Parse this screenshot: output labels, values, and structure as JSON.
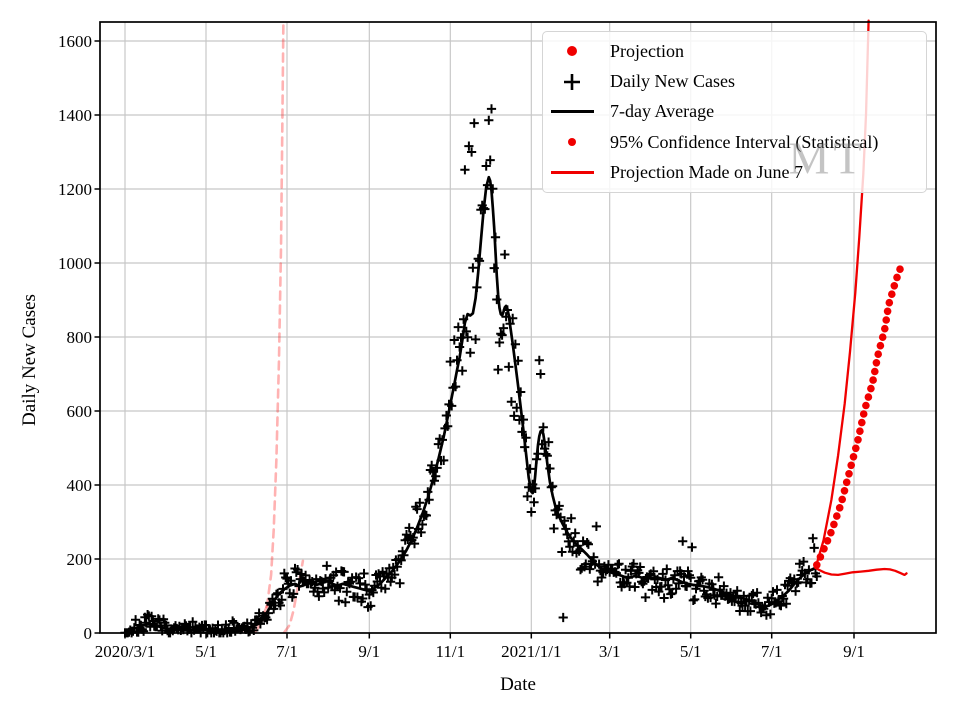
{
  "figure": {
    "watermark": "MT",
    "background": "#ffffff"
  },
  "chart_data": {
    "type": "line",
    "title": "",
    "xlabel": "Date",
    "ylabel": "Daily New Cases",
    "x_axis": {
      "unit": "days since 2020-03-01",
      "tick_days": [
        0,
        61,
        122,
        184,
        245,
        306,
        365,
        426,
        487,
        549
      ],
      "tick_labels": [
        "2020/3/1",
        "5/1",
        "7/1",
        "9/1",
        "11/1",
        "2021/1/1",
        "3/1",
        "5/1",
        "7/1",
        "9/1"
      ],
      "range_days": [
        -19,
        611
      ],
      "grid": true
    },
    "y_axis": {
      "ticks": [
        0,
        200,
        400,
        600,
        800,
        1000,
        1200,
        1400,
        1600
      ],
      "range": [
        0,
        1651
      ],
      "grid": true
    },
    "colors": {
      "red": "#f00000",
      "black": "#000000",
      "faded_pink": "rgba(255,0,0,0.30)",
      "grid": "#c6c6c6",
      "axis": "#000000"
    },
    "legend": {
      "position": "upper-right",
      "entries": [
        {
          "label": "Projection",
          "marker": "dot",
          "color": "#f00000",
          "dot_radius": 5
        },
        {
          "label": "Daily New Cases",
          "marker": "plus",
          "color": "#000000"
        },
        {
          "label": "7-day Average",
          "marker": "line",
          "color": "#000000"
        },
        {
          "label": "95% Confidence Interval (Statistical)",
          "marker": "dot",
          "color": "#f00000",
          "dot_radius": 4
        },
        {
          "label": "Projection Made on June 7",
          "marker": "line",
          "color": "#f00000"
        }
      ]
    },
    "series": {
      "seven_day_avg": {
        "name": "7-day Average",
        "style": "solid",
        "color": "#000000",
        "width": 2.7,
        "points": [
          [
            0,
            2
          ],
          [
            4,
            6
          ],
          [
            8,
            13
          ],
          [
            12,
            19
          ],
          [
            16,
            23
          ],
          [
            20,
            24
          ],
          [
            24,
            20
          ],
          [
            28,
            14
          ],
          [
            32,
            11
          ],
          [
            36,
            10
          ],
          [
            40,
            9
          ],
          [
            45,
            8
          ],
          [
            50,
            7
          ],
          [
            55,
            7
          ],
          [
            60,
            8
          ],
          [
            65,
            8
          ],
          [
            70,
            9
          ],
          [
            75,
            9
          ],
          [
            80,
            10
          ],
          [
            85,
            11
          ],
          [
            90,
            13
          ],
          [
            95,
            16
          ],
          [
            100,
            24
          ],
          [
            104,
            38
          ],
          [
            108,
            62
          ],
          [
            112,
            86
          ],
          [
            116,
            106
          ],
          [
            120,
            118
          ],
          [
            124,
            128
          ],
          [
            128,
            133
          ],
          [
            132,
            126
          ],
          [
            136,
            131
          ],
          [
            140,
            136
          ],
          [
            144,
            130
          ],
          [
            148,
            134
          ],
          [
            152,
            140
          ],
          [
            156,
            133
          ],
          [
            160,
            128
          ],
          [
            164,
            133
          ],
          [
            168,
            129
          ],
          [
            172,
            125
          ],
          [
            176,
            121
          ],
          [
            180,
            117
          ],
          [
            184,
            114
          ],
          [
            188,
            122
          ],
          [
            192,
            133
          ],
          [
            196,
            148
          ],
          [
            200,
            162
          ],
          [
            204,
            180
          ],
          [
            208,
            200
          ],
          [
            212,
            224
          ],
          [
            216,
            252
          ],
          [
            220,
            285
          ],
          [
            224,
            322
          ],
          [
            228,
            365
          ],
          [
            232,
            415
          ],
          [
            236,
            470
          ],
          [
            240,
            530
          ],
          [
            244,
            600
          ],
          [
            248,
            672
          ],
          [
            250,
            710
          ],
          [
            252,
            745
          ],
          [
            254,
            790
          ],
          [
            256,
            838
          ],
          [
            258,
            862
          ],
          [
            260,
            858
          ],
          [
            262,
            864
          ],
          [
            264,
            905
          ],
          [
            266,
            975
          ],
          [
            268,
            1060
          ],
          [
            270,
            1140
          ],
          [
            272,
            1205
          ],
          [
            274,
            1232
          ],
          [
            275,
            1222
          ],
          [
            276,
            1195
          ],
          [
            277,
            1150
          ],
          [
            278,
            1095
          ],
          [
            279,
            1030
          ],
          [
            280,
            965
          ],
          [
            281,
            915
          ],
          [
            282,
            878
          ],
          [
            283,
            862
          ],
          [
            284,
            858
          ],
          [
            285,
            868
          ],
          [
            286,
            880
          ],
          [
            287,
            884
          ],
          [
            288,
            876
          ],
          [
            289,
            858
          ],
          [
            290,
            832
          ],
          [
            292,
            782
          ],
          [
            294,
            726
          ],
          [
            296,
            668
          ],
          [
            298,
            610
          ],
          [
            300,
            548
          ],
          [
            302,
            486
          ],
          [
            304,
            420
          ],
          [
            306,
            382
          ],
          [
            307,
            378
          ],
          [
            308,
            392
          ],
          [
            309,
            428
          ],
          [
            310,
            470
          ],
          [
            311,
            508
          ],
          [
            312,
            532
          ],
          [
            313,
            545
          ],
          [
            314,
            548
          ],
          [
            315,
            538
          ],
          [
            316,
            515
          ],
          [
            317,
            488
          ],
          [
            318,
            458
          ],
          [
            320,
            408
          ],
          [
            322,
            372
          ],
          [
            324,
            344
          ],
          [
            326,
            322
          ],
          [
            328,
            306
          ],
          [
            330,
            292
          ],
          [
            333,
            272
          ],
          [
            336,
            256
          ],
          [
            340,
            240
          ],
          [
            344,
            226
          ],
          [
            348,
            212
          ],
          [
            352,
            196
          ],
          [
            356,
            182
          ],
          [
            360,
            172
          ],
          [
            364,
            166
          ],
          [
            368,
            161
          ],
          [
            372,
            157
          ],
          [
            376,
            152
          ],
          [
            380,
            150
          ],
          [
            384,
            154
          ],
          [
            388,
            151
          ],
          [
            392,
            146
          ],
          [
            396,
            149
          ],
          [
            400,
            151
          ],
          [
            404,
            147
          ],
          [
            408,
            144
          ],
          [
            412,
            149
          ],
          [
            416,
            143
          ],
          [
            420,
            137
          ],
          [
            424,
            133
          ],
          [
            428,
            130
          ],
          [
            432,
            128
          ],
          [
            436,
            126
          ],
          [
            440,
            123
          ],
          [
            444,
            119
          ],
          [
            448,
            114
          ],
          [
            452,
            108
          ],
          [
            456,
            103
          ],
          [
            460,
            99
          ],
          [
            464,
            95
          ],
          [
            468,
            91
          ],
          [
            472,
            85
          ],
          [
            476,
            79
          ],
          [
            479,
            74
          ],
          [
            482,
            72
          ],
          [
            485,
            74
          ],
          [
            488,
            80
          ],
          [
            491,
            88
          ],
          [
            494,
            96
          ],
          [
            497,
            105
          ],
          [
            500,
            115
          ],
          [
            503,
            128
          ],
          [
            506,
            140
          ],
          [
            509,
            151
          ],
          [
            512,
            160
          ],
          [
            515,
            167
          ],
          [
            517,
            171
          ],
          [
            520,
            176
          ]
        ]
      },
      "daily_new_cases": {
        "name": "Daily New Cases",
        "marker": "plus",
        "color": "#000000",
        "day_range": [
          0,
          521
        ],
        "noise_model": {
          "seed": 7,
          "rel_sd": 0.09,
          "abs_sd": 10,
          "clamp_sd": 2.2,
          "basis": "seven_day_avg"
        },
        "outliers": [
          [
            256,
            1252
          ],
          [
            259,
            1316
          ],
          [
            261,
            1300
          ],
          [
            263,
            1378
          ],
          [
            312,
            737
          ],
          [
            313,
            700
          ],
          [
            330,
            42
          ],
          [
            355,
            288
          ],
          [
            420,
            248
          ],
          [
            427,
            232
          ],
          [
            518,
            256
          ],
          [
            519,
            230
          ]
        ]
      },
      "projection_median": {
        "name": "Projection",
        "style": "dots",
        "color": "#f00000",
        "dot_radius": 3.8,
        "dot_spacing_px": 8.8,
        "points": [
          [
            521,
            184
          ],
          [
            531,
            265
          ],
          [
            539,
            346
          ],
          [
            546,
            441
          ],
          [
            552,
            522
          ],
          [
            557,
            603
          ],
          [
            563,
            676
          ],
          [
            567,
            751
          ],
          [
            572,
            819
          ],
          [
            575,
            886
          ],
          [
            579,
            935
          ],
          [
            582,
            968
          ],
          [
            584,
            987
          ]
        ]
      },
      "projection_ci_upper": {
        "name": "95% Confidence Interval (upper)",
        "style": "solid",
        "color": "#f00000",
        "width": 2.3,
        "points": [
          [
            520,
            176
          ],
          [
            526,
            250
          ],
          [
            532,
            360
          ],
          [
            537,
            480
          ],
          [
            542,
            620
          ],
          [
            546,
            760
          ],
          [
            550,
            920
          ],
          [
            553,
            1070
          ],
          [
            556,
            1240
          ],
          [
            558,
            1400
          ],
          [
            560,
            1655
          ]
        ]
      },
      "projection_ci_lower": {
        "name": "95% Confidence Interval (lower)",
        "style": "solid",
        "color": "#f00000",
        "width": 2.3,
        "points": [
          [
            520,
            176
          ],
          [
            523,
            170
          ],
          [
            527,
            163
          ],
          [
            532,
            158
          ],
          [
            537,
            157
          ],
          [
            542,
            160
          ],
          [
            548,
            164
          ],
          [
            554,
            166
          ],
          [
            560,
            168
          ],
          [
            566,
            171
          ],
          [
            572,
            173
          ],
          [
            576,
            172
          ],
          [
            580,
            168
          ],
          [
            584,
            162
          ],
          [
            587,
            157
          ],
          [
            588.5,
            161
          ]
        ]
      },
      "june7_projection_median": {
        "name": "Projection Made on June 7 (median)",
        "style": "solid",
        "color": "rgba(255,0,0,0.30)",
        "width": 2.6,
        "points": [
          [
            85,
            5
          ],
          [
            91,
            8
          ],
          [
            97,
            16
          ],
          [
            102,
            32
          ],
          [
            105,
            57
          ],
          [
            108,
            80
          ]
        ]
      },
      "june7_ci_upper": {
        "name": "Projection Made on June 7 (upper CI)",
        "style": "dashed",
        "color": "rgba(255,0,0,0.30)",
        "width": 2.6,
        "points": [
          [
            98,
            2
          ],
          [
            103,
            30
          ],
          [
            107,
            76
          ],
          [
            110,
            157
          ],
          [
            112,
            278
          ],
          [
            114,
            470
          ],
          [
            116,
            740
          ],
          [
            117.5,
            1040
          ],
          [
            118.5,
            1390
          ],
          [
            119.3,
            1655
          ]
        ]
      },
      "june7_ci_lower": {
        "name": "Projection Made on June 7 (lower CI)",
        "style": "dashed",
        "color": "rgba(255,0,0,0.30)",
        "width": 2.6,
        "points": [
          [
            120,
            2
          ],
          [
            124,
            22
          ],
          [
            127,
            62
          ],
          [
            130,
            122
          ],
          [
            132.5,
            165
          ],
          [
            134,
            195
          ]
        ]
      }
    }
  }
}
